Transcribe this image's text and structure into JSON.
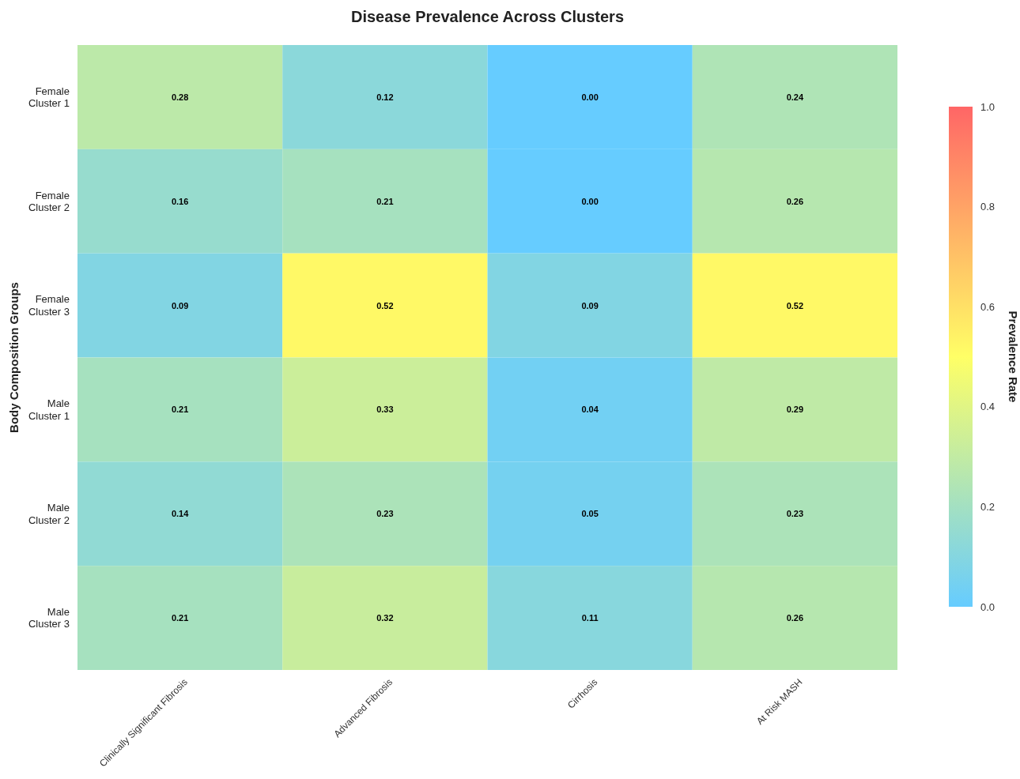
{
  "chart_data": {
    "type": "heatmap",
    "title": "Disease Prevalence Across Clusters",
    "ylabel": "Body Composition Groups",
    "clabel": "Prevalence Rate",
    "categories": [
      "Clinically Significant Fibrosis",
      "Advanced Fibrosis",
      "Cirrhosis",
      "At Risk MASH"
    ],
    "y_categories": [
      "Female\nCluster 1",
      "Female\nCluster 2",
      "Female\nCluster 3",
      "Male\nCluster 1",
      "Male\nCluster 2",
      "Male\nCluster 3"
    ],
    "cells": [
      [
        0.28,
        0.12,
        0.0,
        0.24
      ],
      [
        0.16,
        0.21,
        0.0,
        0.26
      ],
      [
        0.09,
        0.52,
        0.09,
        0.52
      ],
      [
        0.21,
        0.33,
        0.04,
        0.29
      ],
      [
        0.14,
        0.23,
        0.05,
        0.23
      ],
      [
        0.21,
        0.32,
        0.11,
        0.26
      ]
    ],
    "cell_labels": [
      [
        "0.28",
        "0.12",
        "0.00",
        "0.24"
      ],
      [
        "0.16",
        "0.21",
        "0.00",
        "0.26"
      ],
      [
        "0.09",
        "0.52",
        "0.09",
        "0.52"
      ],
      [
        "0.21",
        "0.33",
        "0.04",
        "0.29"
      ],
      [
        "0.14",
        "0.23",
        "0.05",
        "0.23"
      ],
      [
        "0.21",
        "0.32",
        "0.11",
        "0.26"
      ]
    ],
    "clim": [
      0,
      1
    ],
    "cticks": [
      {
        "value": 0,
        "label": "0.0"
      },
      {
        "value": 0.2,
        "label": "0.2"
      },
      {
        "value": 0.4,
        "label": "0.4"
      },
      {
        "value": 0.6,
        "label": "0.6"
      },
      {
        "value": 0.8,
        "label": "0.8"
      },
      {
        "value": 1,
        "label": "1.0"
      }
    ]
  }
}
